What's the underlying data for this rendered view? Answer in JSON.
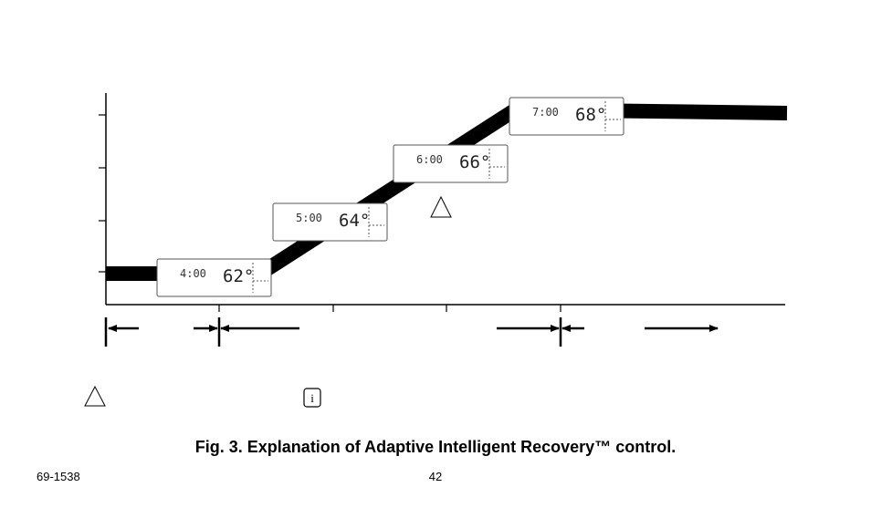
{
  "displays": [
    {
      "time": "4:00",
      "temperature": "62°"
    },
    {
      "time": "5:00",
      "temperature": "64°"
    },
    {
      "time": "6:00",
      "temperature": "66°"
    },
    {
      "time": "7:00",
      "temperature": "68°"
    }
  ],
  "caption": "Fig. 3. Explanation of Adaptive Intelligent Recovery™ control.",
  "footer": {
    "doc_number": "69-1538",
    "page": "42"
  }
}
